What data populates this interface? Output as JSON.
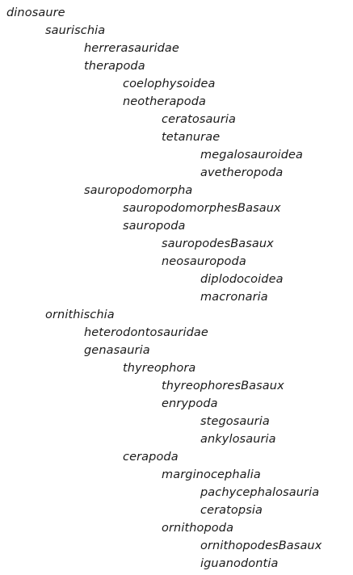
{
  "tree": {
    "nodes": [
      {
        "label": "dinosaure",
        "depth": 0
      },
      {
        "label": "saurischia",
        "depth": 1
      },
      {
        "label": "herrerasauridae",
        "depth": 2
      },
      {
        "label": "therapoda",
        "depth": 2
      },
      {
        "label": "coelophysoidea",
        "depth": 3
      },
      {
        "label": "neotherapoda",
        "depth": 3
      },
      {
        "label": "ceratosauria",
        "depth": 4
      },
      {
        "label": "tetanurae",
        "depth": 4
      },
      {
        "label": "megalosauroidea",
        "depth": 5
      },
      {
        "label": "avetheropoda",
        "depth": 5
      },
      {
        "label": "sauropodomorpha",
        "depth": 2
      },
      {
        "label": "sauropodomorphesBasaux",
        "depth": 3
      },
      {
        "label": "sauropoda",
        "depth": 3
      },
      {
        "label": "sauropodesBasaux",
        "depth": 4
      },
      {
        "label": "neosauropoda",
        "depth": 4
      },
      {
        "label": "diplodocoidea",
        "depth": 5
      },
      {
        "label": "macronaria",
        "depth": 5
      },
      {
        "label": "ornithischia",
        "depth": 1
      },
      {
        "label": "heterodontosauridae",
        "depth": 2
      },
      {
        "label": "genasauria",
        "depth": 2
      },
      {
        "label": "thyreophora",
        "depth": 3
      },
      {
        "label": "thyreophoresBasaux",
        "depth": 4
      },
      {
        "label": "enrypoda",
        "depth": 4
      },
      {
        "label": "stegosauria",
        "depth": 5
      },
      {
        "label": "ankylosauria",
        "depth": 5
      },
      {
        "label": "cerapoda",
        "depth": 3
      },
      {
        "label": "marginocephalia",
        "depth": 4
      },
      {
        "label": "pachycephalosauria",
        "depth": 5
      },
      {
        "label": "ceratopsia",
        "depth": 5
      },
      {
        "label": "ornithopoda",
        "depth": 4
      },
      {
        "label": "ornithopodesBasaux",
        "depth": 5
      },
      {
        "label": "iguanodontia",
        "depth": 5
      }
    ]
  }
}
